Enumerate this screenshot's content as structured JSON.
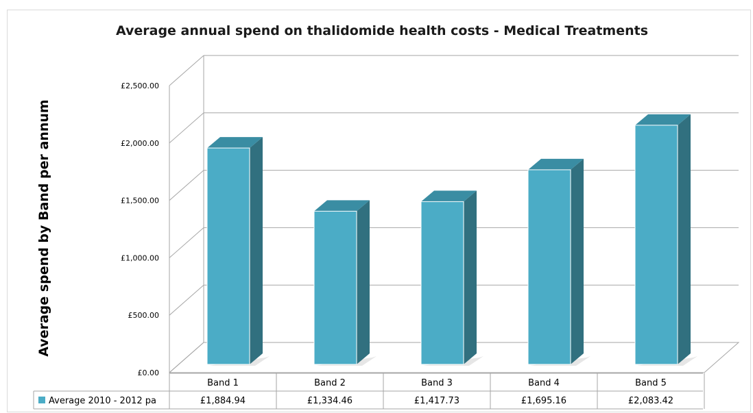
{
  "chart_data": {
    "type": "bar",
    "title": "Average annual spend on thalidomide health costs - Medical Treatments",
    "ylabel": "Average spend by Band per annum",
    "xlabel": "",
    "categories": [
      "Band 1",
      "Band 2",
      "Band 3",
      "Band 4",
      "Band 5"
    ],
    "series": [
      {
        "name": "Average 2010 - 2012 pa",
        "values": [
          1884.94,
          1334.46,
          1417.73,
          1695.16,
          2083.42
        ],
        "labels": [
          "£1,884.94",
          "£1,334.46",
          "£1,417.73",
          "£1,695.16",
          "£2,083.42"
        ]
      }
    ],
    "ylim": [
      0,
      2500
    ],
    "yticks": [
      0,
      500,
      1000,
      1500,
      2000,
      2500
    ],
    "ytick_labels": [
      "£0.00",
      "£500.00",
      "£1,000.00",
      "£1,500.00",
      "£2,000.00",
      "£2,500.00"
    ],
    "grid": true,
    "style": "3d-column-with-data-table",
    "colors": {
      "bar_front": "#4bacc6",
      "bar_side": "#31707f",
      "bar_top": "#3a8da3",
      "grid": "#a6a6a6"
    }
  }
}
